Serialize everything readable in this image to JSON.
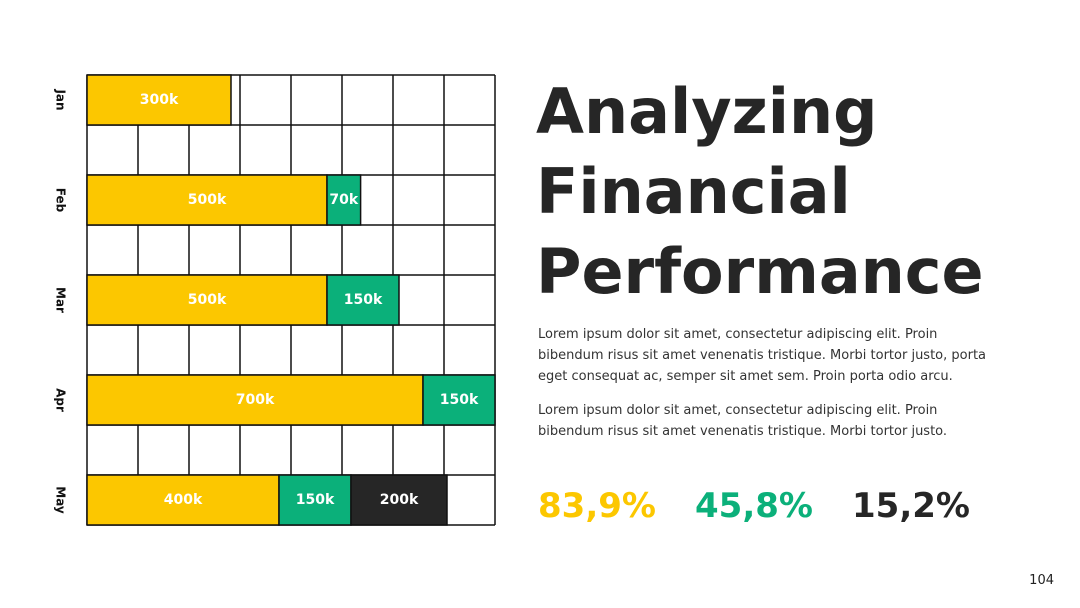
{
  "chart_data": {
    "type": "stacked-barh",
    "categories": [
      "Jan",
      "Feb",
      "Mar",
      "Apr",
      "May"
    ],
    "series": [
      {
        "color": "#fcc700",
        "values": [
          300000,
          500000,
          500000,
          700000,
          400000
        ],
        "value_labels": [
          "300k",
          "500k",
          "500k",
          "700k",
          "400k"
        ]
      },
      {
        "color": "#0bb07a",
        "values": [
          null,
          70000,
          150000,
          150000,
          150000
        ],
        "value_labels": [
          null,
          "70k",
          "150k",
          "150k",
          "150k"
        ]
      },
      {
        "color": "#262626",
        "values": [
          null,
          null,
          null,
          null,
          200000
        ],
        "value_labels": [
          null,
          null,
          null,
          null,
          "200k"
        ]
      }
    ]
  },
  "slide": {
    "title": "Analyzing Financial Performance",
    "paragraphs": [
      "Lorem ipsum dolor sit amet, consectetur adipiscing elit. Proin bibendum risus sit amet venenatis tristique. Morbi tortor justo, porta eget consequat ac, semper sit amet sem. Proin porta odio arcu.",
      "Lorem ipsum dolor sit amet, consectetur adipiscing elit. Proin bibendum risus sit amet venenatis tristique. Morbi tortor justo."
    ],
    "stats": [
      {
        "text": "83,9%",
        "color": "#fcc700"
      },
      {
        "text": "45,8%",
        "color": "#0bb07a"
      },
      {
        "text": "15,2%",
        "color": "#262626"
      }
    ],
    "page_number": 104
  }
}
